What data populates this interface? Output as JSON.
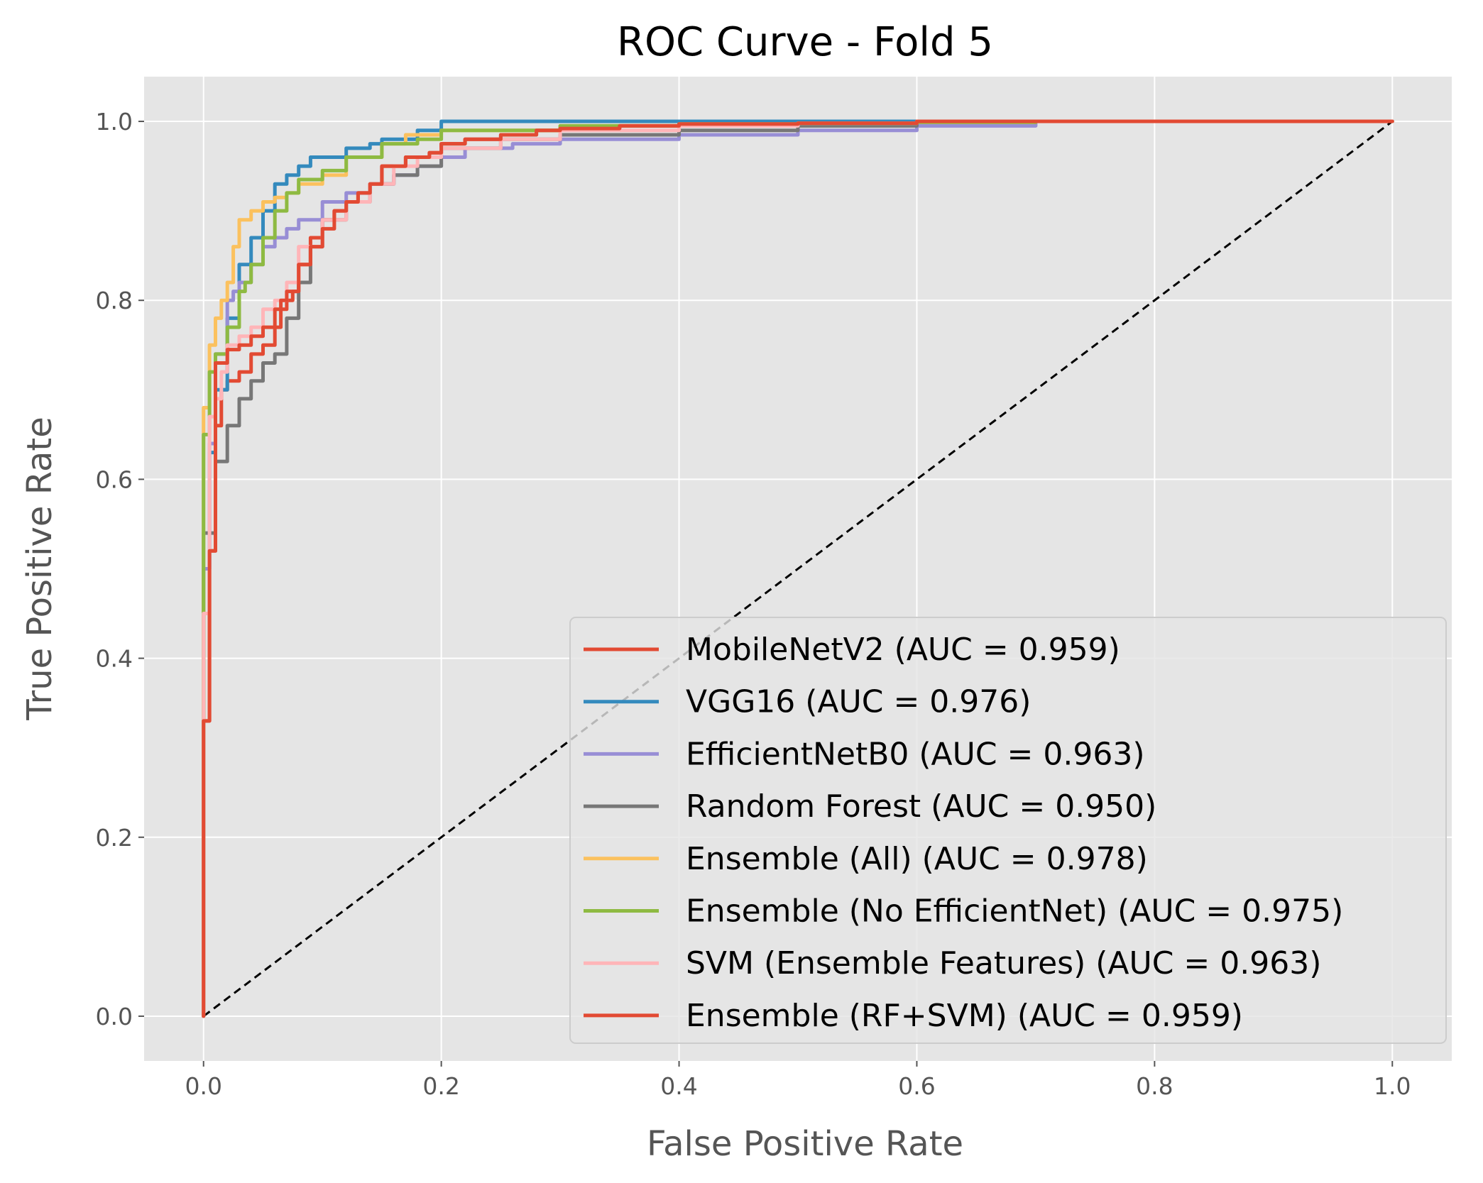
{
  "chart_data": {
    "type": "line",
    "title": "ROC Curve - Fold 5",
    "xlabel": "False Positive Rate",
    "ylabel": "True Positive Rate",
    "xlim": [
      -0.05,
      1.05
    ],
    "ylim": [
      -0.05,
      1.05
    ],
    "xticks": [
      0.0,
      0.2,
      0.4,
      0.6,
      0.8,
      1.0
    ],
    "yticks": [
      0.0,
      0.2,
      0.4,
      0.6,
      0.8,
      1.0
    ],
    "xtick_labels": [
      "0.0",
      "0.2",
      "0.4",
      "0.6",
      "0.8",
      "1.0"
    ],
    "ytick_labels": [
      "0.0",
      "0.2",
      "0.4",
      "0.6",
      "0.8",
      "1.0"
    ],
    "grid": true,
    "background": "#e5e5e5",
    "legend_position": "lower right",
    "diagonal": {
      "x": [
        0,
        1
      ],
      "y": [
        0,
        1
      ],
      "color": "#000000",
      "style": "dashed"
    },
    "series": [
      {
        "name": "MobileNetV2 (AUC = 0.959)",
        "color": "#e24a33",
        "x": [
          0,
          0.0,
          0.005,
          0.005,
          0.01,
          0.01,
          0.015,
          0.02,
          0.03,
          0.04,
          0.05,
          0.06,
          0.065,
          0.07,
          0.075,
          0.08,
          0.09,
          0.1,
          0.11,
          0.12,
          0.13,
          0.14,
          0.15,
          0.17,
          0.19,
          0.2,
          0.22,
          0.25,
          0.28,
          0.3,
          0.35,
          0.4,
          0.5,
          0.6,
          0.7,
          0.8,
          0.9,
          1.0
        ],
        "y": [
          0,
          0.33,
          0.33,
          0.52,
          0.52,
          0.65,
          0.66,
          0.7,
          0.71,
          0.72,
          0.74,
          0.75,
          0.77,
          0.79,
          0.8,
          0.81,
          0.84,
          0.87,
          0.89,
          0.9,
          0.91,
          0.92,
          0.93,
          0.95,
          0.96,
          0.965,
          0.975,
          0.98,
          0.985,
          0.99,
          0.992,
          0.995,
          0.997,
          0.998,
          1.0,
          1.0,
          1.0,
          1.0
        ]
      },
      {
        "name": "VGG16 (AUC = 0.976)",
        "color": "#348abd",
        "x": [
          0,
          0.0,
          0.005,
          0.01,
          0.02,
          0.03,
          0.04,
          0.05,
          0.06,
          0.07,
          0.08,
          0.09,
          0.1,
          0.12,
          0.14,
          0.15,
          0.18,
          0.2,
          0.23,
          0.3,
          0.4,
          0.5,
          0.6,
          0.7,
          0.78,
          0.8,
          1.0
        ],
        "y": [
          0,
          0.49,
          0.5,
          0.63,
          0.7,
          0.78,
          0.84,
          0.87,
          0.9,
          0.93,
          0.94,
          0.95,
          0.96,
          0.96,
          0.97,
          0.975,
          0.98,
          0.99,
          1.0,
          1.0,
          1.0,
          1.0,
          1.0,
          1.0,
          1.0,
          1.0,
          1.0
        ]
      },
      {
        "name": "EfficientNetB0 (AUC = 0.963)",
        "color": "#988ed5",
        "x": [
          0,
          0.0,
          0.005,
          0.01,
          0.02,
          0.025,
          0.03,
          0.04,
          0.05,
          0.06,
          0.07,
          0.08,
          0.1,
          0.12,
          0.14,
          0.16,
          0.18,
          0.2,
          0.22,
          0.26,
          0.3,
          0.4,
          0.5,
          0.6,
          0.7,
          0.8,
          1.0
        ],
        "y": [
          0,
          0.3,
          0.5,
          0.64,
          0.74,
          0.8,
          0.81,
          0.82,
          0.84,
          0.86,
          0.87,
          0.88,
          0.89,
          0.91,
          0.92,
          0.93,
          0.94,
          0.95,
          0.96,
          0.97,
          0.975,
          0.98,
          0.985,
          0.99,
          0.995,
          1.0,
          1.0
        ]
      },
      {
        "name": "Random Forest (AUC = 0.950)",
        "color": "#777777",
        "x": [
          0,
          0.0,
          0.01,
          0.02,
          0.03,
          0.04,
          0.05,
          0.06,
          0.07,
          0.08,
          0.09,
          0.1,
          0.12,
          0.14,
          0.16,
          0.18,
          0.2,
          0.25,
          0.3,
          0.4,
          0.5,
          0.6,
          0.7,
          0.8,
          1.0
        ],
        "y": [
          0,
          0.3,
          0.54,
          0.62,
          0.66,
          0.69,
          0.71,
          0.73,
          0.74,
          0.78,
          0.82,
          0.86,
          0.89,
          0.91,
          0.93,
          0.94,
          0.95,
          0.97,
          0.98,
          0.985,
          0.99,
          0.995,
          1.0,
          1.0,
          1.0
        ]
      },
      {
        "name": "Ensemble (All) (AUC = 0.978)",
        "color": "#fbc15e",
        "x": [
          0,
          0.0,
          0.005,
          0.01,
          0.015,
          0.02,
          0.025,
          0.03,
          0.035,
          0.04,
          0.05,
          0.06,
          0.07,
          0.08,
          0.1,
          0.12,
          0.15,
          0.17,
          0.2,
          0.23,
          0.3,
          0.4,
          0.5,
          0.6,
          0.7,
          0.75,
          0.8,
          1.0
        ],
        "y": [
          0,
          0.48,
          0.68,
          0.75,
          0.78,
          0.8,
          0.82,
          0.86,
          0.89,
          0.89,
          0.9,
          0.91,
          0.915,
          0.92,
          0.93,
          0.94,
          0.96,
          0.975,
          0.985,
          0.99,
          0.99,
          0.995,
          0.997,
          0.998,
          0.999,
          1.0,
          1.0,
          1.0
        ]
      },
      {
        "name": "Ensemble (No EfficientNet) (AUC = 0.975)",
        "color": "#8eba42",
        "x": [
          0,
          0.0,
          0.005,
          0.01,
          0.02,
          0.03,
          0.035,
          0.04,
          0.05,
          0.06,
          0.07,
          0.08,
          0.1,
          0.12,
          0.15,
          0.18,
          0.2,
          0.23,
          0.3,
          0.4,
          0.5,
          0.6,
          0.7,
          0.8,
          1.0
        ],
        "y": [
          0,
          0.37,
          0.65,
          0.72,
          0.74,
          0.77,
          0.81,
          0.82,
          0.84,
          0.87,
          0.9,
          0.92,
          0.935,
          0.945,
          0.96,
          0.975,
          0.98,
          0.99,
          0.99,
          0.995,
          0.997,
          0.998,
          0.999,
          1.0,
          1.0
        ]
      },
      {
        "name": "SVM (Ensemble Features) (AUC = 0.963)",
        "color": "#ffb5b8",
        "x": [
          0,
          0.0,
          0.005,
          0.01,
          0.015,
          0.02,
          0.03,
          0.04,
          0.05,
          0.06,
          0.07,
          0.08,
          0.1,
          0.12,
          0.14,
          0.16,
          0.18,
          0.2,
          0.25,
          0.3,
          0.4,
          0.5,
          0.6,
          0.7,
          0.8,
          1.0
        ],
        "y": [
          0,
          0.35,
          0.45,
          0.67,
          0.69,
          0.72,
          0.75,
          0.76,
          0.77,
          0.79,
          0.8,
          0.82,
          0.86,
          0.89,
          0.91,
          0.93,
          0.95,
          0.96,
          0.97,
          0.98,
          0.99,
          0.995,
          0.998,
          1.0,
          1.0,
          1.0
        ]
      },
      {
        "name": "Ensemble (RF+SVM) (AUC = 0.959)",
        "color": "#e24a33",
        "x": [
          0,
          0.0,
          0.005,
          0.005,
          0.01,
          0.01,
          0.02,
          0.03,
          0.04,
          0.05,
          0.06,
          0.065,
          0.07,
          0.08,
          0.09,
          0.1,
          0.11,
          0.12,
          0.13,
          0.14,
          0.15,
          0.17,
          0.19,
          0.2,
          0.22,
          0.25,
          0.28,
          0.3,
          0.35,
          0.4,
          0.5,
          0.6,
          0.7,
          0.8,
          0.9,
          1.0
        ],
        "y": [
          0,
          0.33,
          0.33,
          0.52,
          0.52,
          0.66,
          0.73,
          0.745,
          0.75,
          0.76,
          0.77,
          0.79,
          0.8,
          0.81,
          0.84,
          0.86,
          0.88,
          0.9,
          0.91,
          0.92,
          0.93,
          0.95,
          0.96,
          0.965,
          0.975,
          0.98,
          0.985,
          0.99,
          0.992,
          0.995,
          0.997,
          0.998,
          1.0,
          1.0,
          1.0,
          1.0
        ]
      }
    ]
  }
}
